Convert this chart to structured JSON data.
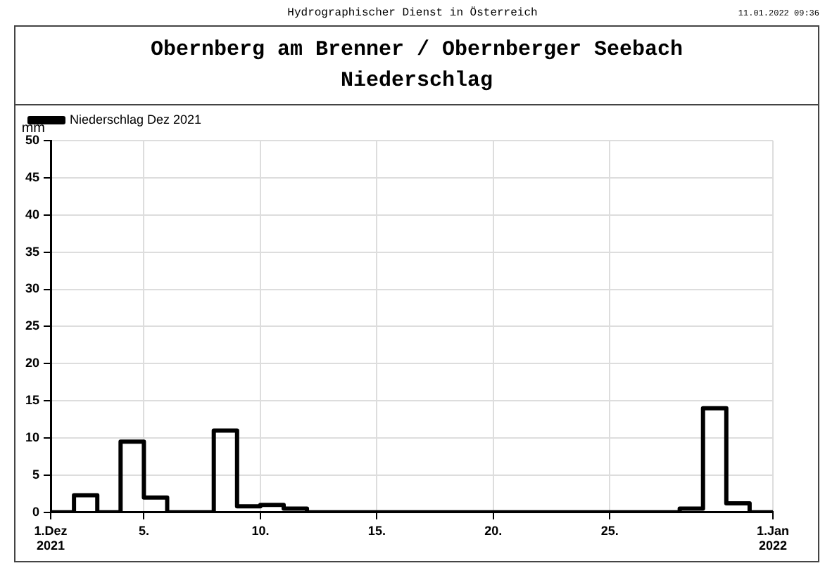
{
  "chart_data": {
    "type": "step",
    "title": "Obernberg am Brenner / Obernberger Seebach",
    "subtitle": "Niederschlag",
    "ylabel": "mm",
    "annotations": [
      "Hydrographischer Dienst in Österreich",
      "11.01.2022 09:36"
    ],
    "x": [
      1,
      2,
      3,
      4,
      5,
      6,
      7,
      8,
      9,
      10,
      11,
      12,
      13,
      14,
      15,
      16,
      17,
      18,
      19,
      20,
      21,
      22,
      23,
      24,
      25,
      26,
      27,
      28,
      29,
      30,
      31,
      32
    ],
    "series": [
      {
        "name": "Niederschlag Dez 2021",
        "color": "#000000",
        "values": [
          0,
          2.3,
          0,
          9.5,
          2,
          0,
          0,
          11,
          0.8,
          1.0,
          0.5,
          0,
          0,
          0,
          0,
          0,
          0,
          0,
          0,
          0,
          0,
          0,
          0,
          0,
          0,
          0,
          0,
          0.5,
          14,
          1.2,
          0,
          0
        ]
      }
    ],
    "xlim": [
      1,
      32
    ],
    "xticks": [
      {
        "value": 1,
        "label": "1.Dez 2021"
      },
      {
        "value": 5,
        "label": "5."
      },
      {
        "value": 10,
        "label": "10."
      },
      {
        "value": 15,
        "label": "15."
      },
      {
        "value": 20,
        "label": "20."
      },
      {
        "value": 25,
        "label": "25."
      },
      {
        "value": 32,
        "label": "1.Jan 2022"
      }
    ],
    "ylim": [
      0,
      50
    ],
    "yticks": [
      0,
      5,
      10,
      15,
      20,
      25,
      30,
      35,
      40,
      45,
      50
    ],
    "grid": true,
    "legend": "top left",
    "line_style": "solid",
    "marker": "none"
  }
}
